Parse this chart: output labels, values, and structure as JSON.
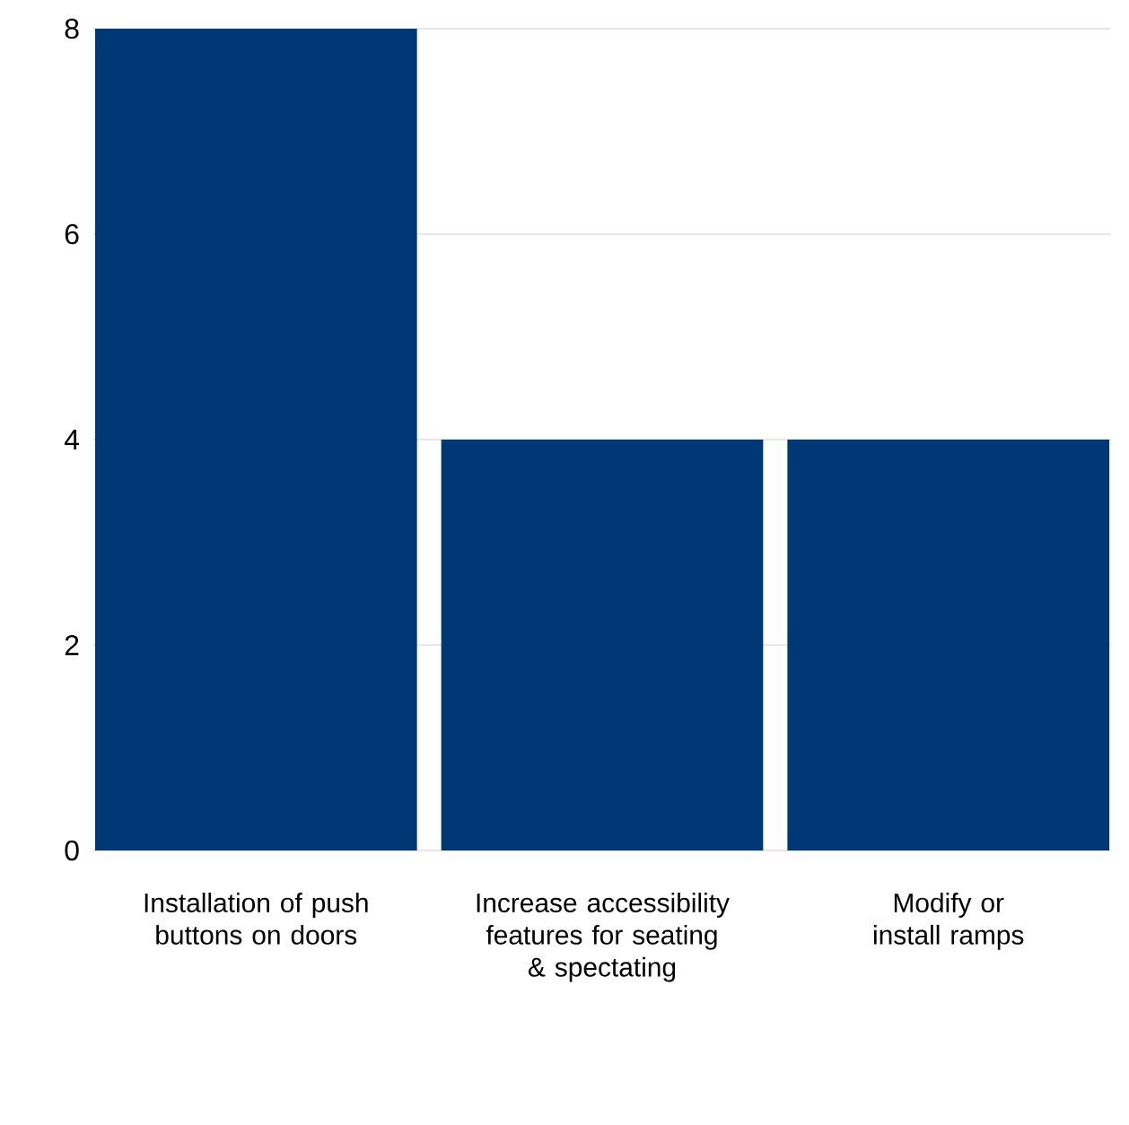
{
  "chart_data": {
    "type": "bar",
    "categories": [
      "Installation of push buttons on doors",
      "Increase accessibility features for seating & spectating",
      "Modify or install ramps"
    ],
    "values": [
      8,
      4,
      4
    ],
    "color": "#003876",
    "ylim": [
      0,
      8
    ],
    "yticks": [
      0,
      2,
      4,
      6,
      8
    ],
    "grid": "y"
  }
}
